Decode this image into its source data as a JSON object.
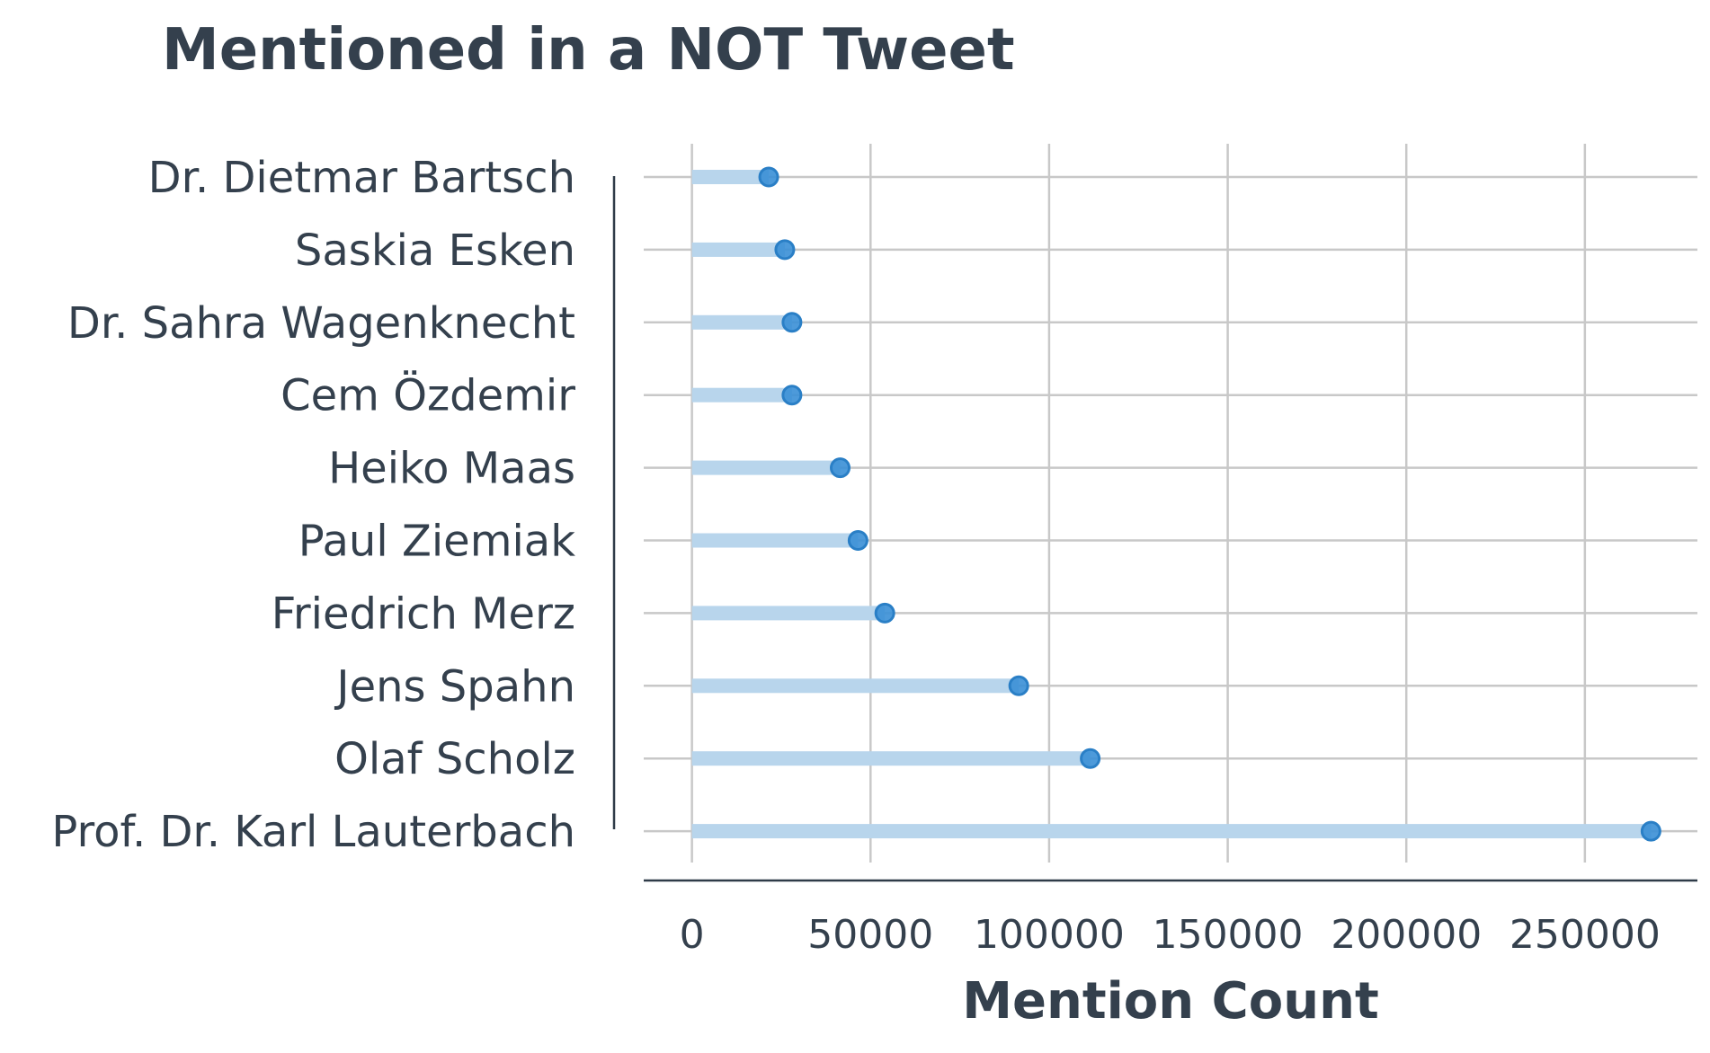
{
  "chart_data": {
    "type": "lollipop",
    "title": "Mentioned in a NOT Tweet",
    "xlabel": "Mention Count",
    "ylabel": "",
    "xlim": [
      -13500,
      281500
    ],
    "xticks": [
      0,
      50000,
      100000,
      150000,
      200000,
      250000
    ],
    "xtick_labels": [
      "0",
      "50000",
      "100000",
      "150000",
      "200000",
      "250000"
    ],
    "grid": true,
    "categories": [
      "Dr. Dietmar Bartsch",
      "Saskia Esken",
      "Dr. Sahra Wagenknecht",
      "Cem Özdemir",
      "Heiko Maas",
      "Paul Ziemiak",
      "Friedrich Merz",
      "Jens Spahn",
      "Olaf Scholz",
      "Prof. Dr. Karl Lauterbach"
    ],
    "values": [
      21500,
      26000,
      28000,
      28000,
      41500,
      46500,
      54000,
      91500,
      111500,
      268500
    ],
    "colors": {
      "marker": "#3a8fd6",
      "marker_edge": "#2a7fc6",
      "stem": "#b8d5ec",
      "grid": "#c8c8c8",
      "axis": "#2f3b48"
    }
  }
}
